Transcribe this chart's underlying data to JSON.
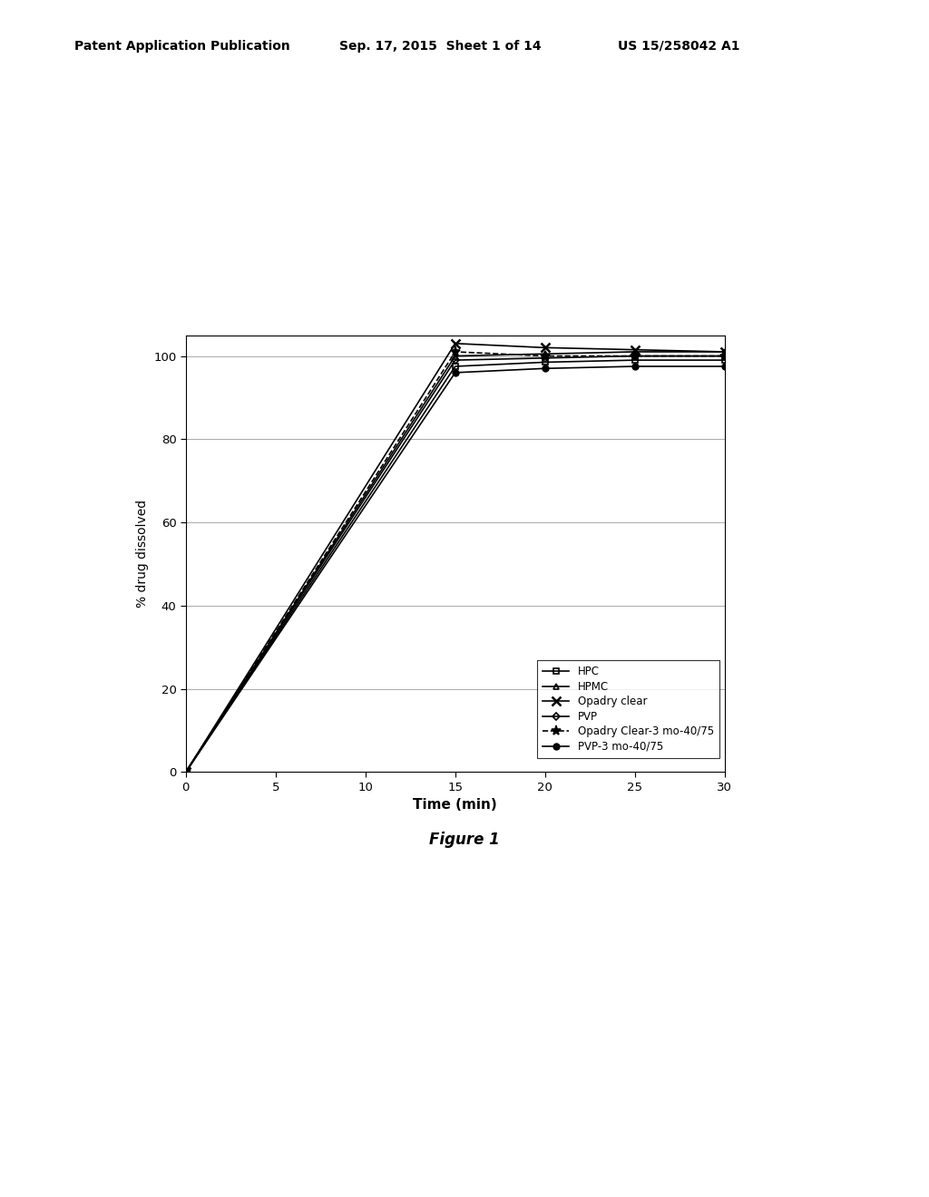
{
  "title": "",
  "xlabel": "Time (min)",
  "ylabel": "% drug dissolved",
  "xlim": [
    0,
    30
  ],
  "ylim": [
    0,
    105
  ],
  "xticks": [
    0,
    5,
    10,
    15,
    20,
    25,
    30
  ],
  "yticks": [
    0,
    20,
    40,
    60,
    80,
    100
  ],
  "series": [
    {
      "label": "HPC",
      "x": [
        0,
        15,
        20,
        25,
        30
      ],
      "y": [
        0,
        97.5,
        98.5,
        99,
        99
      ],
      "marker": "s",
      "marker_size": 5,
      "fillstyle": "none",
      "color": "#000000",
      "linewidth": 1.2,
      "linestyle": "-"
    },
    {
      "label": "HPMC",
      "x": [
        0,
        15,
        20,
        25,
        30
      ],
      "y": [
        0,
        100,
        100.5,
        101,
        101
      ],
      "marker": "^",
      "marker_size": 5,
      "fillstyle": "none",
      "color": "#000000",
      "linewidth": 1.2,
      "linestyle": "-"
    },
    {
      "label": "Opadry clear",
      "x": [
        0,
        15,
        20,
        25,
        30
      ],
      "y": [
        0,
        103,
        102,
        101.5,
        101
      ],
      "marker": "x",
      "marker_size": 7,
      "fillstyle": "full",
      "color": "#000000",
      "linewidth": 1.2,
      "linestyle": "-"
    },
    {
      "label": "PVP",
      "x": [
        0,
        15,
        20,
        25,
        30
      ],
      "y": [
        0,
        99,
        99.5,
        100,
        100
      ],
      "marker": "D",
      "marker_size": 4,
      "fillstyle": "none",
      "color": "#000000",
      "linewidth": 1.2,
      "linestyle": "-"
    },
    {
      "label": "Opadry Clear-3 mo-40/75",
      "x": [
        0,
        15,
        20,
        25,
        30
      ],
      "y": [
        0,
        101,
        100,
        100,
        100
      ],
      "marker": "*",
      "marker_size": 8,
      "fillstyle": "full",
      "color": "#000000",
      "linewidth": 1.2,
      "linestyle": "--"
    },
    {
      "label": "PVP-3 mo-40/75",
      "x": [
        0,
        15,
        20,
        25,
        30
      ],
      "y": [
        0,
        96,
        97,
        97.5,
        97.5
      ],
      "marker": "o",
      "marker_size": 5,
      "fillstyle": "full",
      "color": "#000000",
      "linewidth": 1.2,
      "linestyle": "-"
    }
  ],
  "header_left": "Patent Application Publication",
  "header_mid": "Sep. 17, 2015  Sheet 1 of 14",
  "header_right": "US 15/258042 A1",
  "figure_label": "Figure 1",
  "background_color": "#ffffff"
}
